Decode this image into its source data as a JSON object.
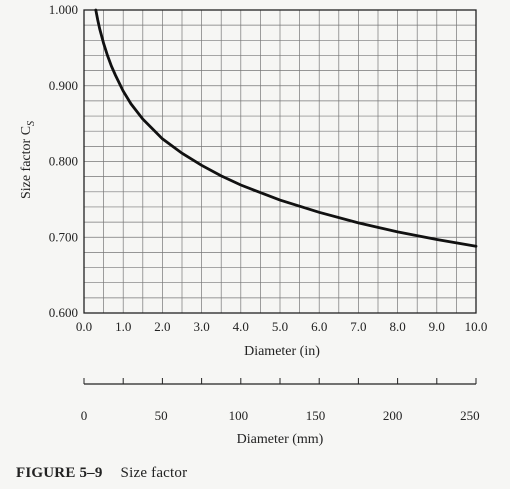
{
  "caption": {
    "label": "FIGURE 5–9",
    "text": "Size factor"
  },
  "chart_data": {
    "type": "line",
    "title": "",
    "ylabel": "Size factor C",
    "ylabel_subscript": "S",
    "xlabel": "Diameter (in)",
    "x2label": "Diameter (mm)",
    "xlim": [
      0,
      10
    ],
    "ylim": [
      0.6,
      1.0
    ],
    "x2lim_mm": [
      0,
      254
    ],
    "grid": true,
    "x_tick_labels": [
      "0.0",
      "1.0",
      "2.0",
      "3.0",
      "4.0",
      "5.0",
      "6.0",
      "7.0",
      "8.0",
      "9.0",
      "10.0"
    ],
    "y_tick_labels": [
      "0.600",
      "0.700",
      "0.800",
      "0.900",
      "1.000"
    ],
    "y_ticks": [
      0.6,
      0.7,
      0.8,
      0.9,
      1.0
    ],
    "x2_tick_labels": [
      "0",
      "50",
      "100",
      "150",
      "200",
      "250"
    ],
    "x2_ticks": [
      0,
      50,
      100,
      150,
      200,
      250
    ],
    "series": [
      {
        "color": "#111111",
        "x": [
          0.3,
          0.35,
          0.4,
          0.5,
          0.6,
          0.7,
          0.8,
          1.0,
          1.2,
          1.5,
          2.0,
          2.5,
          3.0,
          3.5,
          4.0,
          5.0,
          6.0,
          7.0,
          8.0,
          9.0,
          10.0
        ],
        "y": [
          1.0,
          0.987,
          0.975,
          0.956,
          0.94,
          0.926,
          0.914,
          0.893,
          0.876,
          0.856,
          0.83,
          0.811,
          0.795,
          0.781,
          0.769,
          0.749,
          0.733,
          0.719,
          0.707,
          0.697,
          0.688
        ]
      }
    ]
  }
}
